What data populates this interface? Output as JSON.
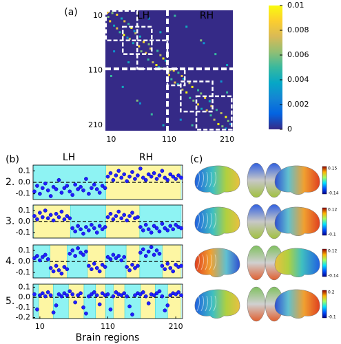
{
  "panels": [
    "(a)",
    "(b)",
    "(c)"
  ],
  "chart_data": [
    {
      "type": "heatmap",
      "annotations": [
        "LH",
        "RH"
      ],
      "xlim": [
        0,
        220
      ],
      "ylim": [
        0,
        220
      ],
      "xticks": [
        10,
        110,
        210
      ],
      "yticks": [
        10,
        110,
        210
      ],
      "hemisphere_split": 107,
      "modules": [
        [
          1,
          55
        ],
        [
          30,
          80
        ],
        [
          55,
          107
        ],
        [
          107,
          137
        ],
        [
          130,
          185
        ],
        [
          157,
          218
        ]
      ],
      "colorscale": [
        "#352a87",
        "#0363e1",
        "#1485d4",
        "#06a7c6",
        "#38b99e",
        "#92bf73",
        "#d9ba56",
        "#fcce2e",
        "#f9fb0e"
      ],
      "colorbar": {
        "lim": [
          0,
          0.01
        ],
        "ticks": [
          0,
          0.002,
          0.004,
          0.006,
          0.008,
          0.01
        ]
      },
      "cells": [
        [
          5,
          12,
          0.006
        ],
        [
          8,
          20,
          0.009
        ],
        [
          15,
          28,
          0.004
        ],
        [
          20,
          33,
          0.008
        ],
        [
          25,
          40,
          0.005
        ],
        [
          32,
          45,
          0.01
        ],
        [
          38,
          50,
          0.003
        ],
        [
          42,
          52,
          0.007
        ],
        [
          48,
          60,
          0.004
        ],
        [
          58,
          66,
          0.009
        ],
        [
          62,
          75,
          0.006
        ],
        [
          70,
          78,
          0.008
        ],
        [
          74,
          90,
          0.005
        ],
        [
          82,
          95,
          0.007
        ],
        [
          88,
          100,
          0.01
        ],
        [
          92,
          104,
          0.004
        ],
        [
          97,
          106,
          0.006
        ],
        [
          110,
          118,
          0.009
        ],
        [
          114,
          126,
          0.005
        ],
        [
          120,
          132,
          0.008
        ],
        [
          125,
          135,
          0.004
        ],
        [
          133,
          145,
          0.007
        ],
        [
          140,
          150,
          0.01
        ],
        [
          146,
          160,
          0.005
        ],
        [
          152,
          165,
          0.006
        ],
        [
          160,
          172,
          0.009
        ],
        [
          166,
          180,
          0.004
        ],
        [
          175,
          183,
          0.008
        ],
        [
          182,
          192,
          0.005
        ],
        [
          188,
          200,
          0.007
        ],
        [
          195,
          208,
          0.01
        ],
        [
          202,
          212,
          0.006
        ],
        [
          208,
          216,
          0.003
        ],
        [
          10,
          120,
          0.005
        ],
        [
          30,
          140,
          0.004
        ],
        [
          55,
          165,
          0.006
        ],
        [
          80,
          190,
          0.005
        ],
        [
          100,
          210,
          0.004
        ],
        [
          15,
          75,
          0.003
        ],
        [
          40,
          95,
          0.004
        ],
        [
          130,
          200,
          0.003
        ],
        [
          150,
          210,
          0.005
        ],
        [
          3,
          5,
          0.008
        ],
        [
          109,
          112,
          0.007
        ],
        [
          60,
          170,
          0.003
        ]
      ]
    },
    {
      "type": "scatter",
      "label": "2.",
      "annotations": [
        "LH",
        "RH"
      ],
      "xlim": [
        0,
        220
      ],
      "ylim": [
        -0.15,
        0.15
      ],
      "yticks": [
        0.1,
        {
          "value": 0,
          "label": "0.0"
        },
        -0.1
      ],
      "color": "#1f1fff",
      "regions": [
        {
          "from": 1,
          "to": 107,
          "color": "#8ef3f3"
        },
        {
          "from": 107,
          "to": 218,
          "color": "#fdf6a3"
        }
      ],
      "x": [
        2,
        6,
        10,
        14,
        18,
        22,
        26,
        30,
        34,
        38,
        42,
        46,
        50,
        54,
        58,
        62,
        66,
        70,
        74,
        78,
        82,
        86,
        90,
        94,
        98,
        102,
        106,
        110,
        114,
        118,
        122,
        126,
        130,
        134,
        138,
        142,
        146,
        150,
        154,
        158,
        162,
        166,
        170,
        174,
        178,
        182,
        186,
        190,
        194,
        198,
        202,
        206,
        210,
        214,
        218
      ],
      "values": [
        -0.08,
        -0.03,
        -0.1,
        -0.05,
        -0.01,
        -0.07,
        -0.12,
        -0.04,
        -0.06,
        0.02,
        -0.09,
        -0.05,
        -0.03,
        -0.08,
        -0.11,
        -0.02,
        -0.06,
        -0.04,
        -0.07,
        0.03,
        -0.1,
        -0.05,
        -0.02,
        -0.06,
        -0.09,
        -0.03,
        -0.05,
        0.05,
        0.08,
        0.02,
        0.06,
        0.1,
        0.04,
        0.07,
        0.01,
        0.05,
        0.09,
        0.03,
        0.06,
        0.12,
        0.04,
        0.02,
        0.07,
        0.05,
        0.08,
        0.03,
        0.06,
        0.1,
        0.04,
        0.02,
        0.07,
        0.05,
        0.03,
        0.06,
        0.04
      ]
    },
    {
      "type": "scatter",
      "label": "3.",
      "xlim": [
        0,
        220
      ],
      "ylim": [
        -0.15,
        0.15
      ],
      "yticks": [
        0.1,
        {
          "value": 0,
          "label": "0.0"
        },
        -0.1
      ],
      "color": "#1f1fff",
      "regions": [
        {
          "from": 1,
          "to": 55,
          "color": "#fdf6a3"
        },
        {
          "from": 55,
          "to": 107,
          "color": "#8ef3f3"
        },
        {
          "from": 107,
          "to": 157,
          "color": "#fdf6a3"
        },
        {
          "from": 157,
          "to": 218,
          "color": "#8ef3f3"
        }
      ],
      "x": [
        2,
        6,
        10,
        14,
        18,
        22,
        26,
        30,
        34,
        38,
        42,
        46,
        50,
        54,
        58,
        62,
        66,
        70,
        74,
        78,
        82,
        86,
        90,
        94,
        98,
        102,
        106,
        110,
        114,
        118,
        122,
        126,
        130,
        134,
        138,
        142,
        146,
        150,
        154,
        158,
        162,
        166,
        170,
        174,
        178,
        182,
        186,
        190,
        194,
        198,
        202,
        206,
        210,
        214,
        218
      ],
      "values": [
        0.05,
        0.02,
        0.08,
        0.04,
        0.1,
        0.03,
        0.06,
        0.01,
        0.07,
        0.04,
        0.09,
        0.02,
        0.05,
        0.03,
        -0.06,
        -0.09,
        -0.04,
        -0.07,
        -0.11,
        -0.05,
        -0.08,
        -0.03,
        -0.06,
        -0.1,
        -0.04,
        -0.07,
        -0.05,
        0.04,
        0.07,
        0.02,
        0.05,
        0.09,
        0.03,
        0.06,
        0.01,
        0.05,
        0.08,
        0.03,
        0.04,
        -0.05,
        -0.08,
        -0.03,
        -0.07,
        -0.1,
        -0.04,
        -0.06,
        -0.09,
        -0.02,
        -0.06,
        -0.08,
        -0.04,
        -0.07,
        -0.03,
        -0.05,
        -0.06
      ]
    },
    {
      "type": "scatter",
      "label": "4.",
      "xlim": [
        0,
        220
      ],
      "ylim": [
        -0.15,
        0.15
      ],
      "yticks": [
        0.1,
        {
          "value": 0,
          "label": "0.0"
        },
        -0.1
      ],
      "color": "#1f1fff",
      "regions": [
        {
          "from": 1,
          "to": 25,
          "color": "#8ef3f3"
        },
        {
          "from": 25,
          "to": 50,
          "color": "#fdf6a3"
        },
        {
          "from": 50,
          "to": 80,
          "color": "#8ef3f3"
        },
        {
          "from": 80,
          "to": 107,
          "color": "#fdf6a3"
        },
        {
          "from": 107,
          "to": 137,
          "color": "#8ef3f3"
        },
        {
          "from": 137,
          "to": 157,
          "color": "#fdf6a3"
        },
        {
          "from": 157,
          "to": 190,
          "color": "#8ef3f3"
        },
        {
          "from": 190,
          "to": 218,
          "color": "#fdf6a3"
        }
      ],
      "x": [
        2,
        6,
        10,
        14,
        18,
        22,
        26,
        30,
        34,
        38,
        42,
        46,
        50,
        54,
        58,
        62,
        66,
        70,
        74,
        78,
        82,
        86,
        90,
        94,
        98,
        102,
        106,
        110,
        114,
        118,
        122,
        126,
        130,
        134,
        138,
        142,
        146,
        150,
        154,
        158,
        162,
        166,
        170,
        174,
        178,
        182,
        186,
        190,
        194,
        198,
        202,
        206,
        210,
        214,
        218
      ],
      "values": [
        0.03,
        0.05,
        0.01,
        0.04,
        0.06,
        0.02,
        -0.06,
        -0.09,
        -0.04,
        -0.08,
        -0.11,
        -0.05,
        -0.07,
        0.07,
        0.1,
        0.05,
        0.12,
        0.08,
        0.06,
        0.09,
        -0.04,
        -0.07,
        -0.02,
        -0.06,
        -0.09,
        -0.03,
        -0.05,
        0.04,
        0.02,
        0.06,
        0.03,
        0.05,
        0.01,
        0.04,
        -0.05,
        -0.08,
        -0.03,
        -0.06,
        -0.04,
        0.08,
        0.11,
        0.05,
        0.09,
        0.13,
        0.06,
        0.1,
        0.07,
        -0.04,
        -0.07,
        -0.02,
        -0.06,
        -0.09,
        -0.03,
        -0.05,
        -0.04
      ]
    },
    {
      "type": "scatter",
      "label": "5.",
      "xlim": [
        0,
        220
      ],
      "ylim": [
        -0.21,
        0.13
      ],
      "yticks": [
        0.1,
        {
          "value": 0,
          "label": "0.0"
        },
        -0.1,
        -0.2
      ],
      "xticks": [
        10,
        110,
        210
      ],
      "xlabel": "Brain regions",
      "color": "#1f1fff",
      "regions": [
        {
          "from": 1,
          "to": 8,
          "color": "#8ef3f3"
        },
        {
          "from": 8,
          "to": 30,
          "color": "#fdf6a3"
        },
        {
          "from": 30,
          "to": 52,
          "color": "#8ef3f3"
        },
        {
          "from": 52,
          "to": 75,
          "color": "#fdf6a3"
        },
        {
          "from": 75,
          "to": 92,
          "color": "#8ef3f3"
        },
        {
          "from": 92,
          "to": 107,
          "color": "#fdf6a3"
        },
        {
          "from": 107,
          "to": 118,
          "color": "#8ef3f3"
        },
        {
          "from": 118,
          "to": 135,
          "color": "#fdf6a3"
        },
        {
          "from": 135,
          "to": 158,
          "color": "#8ef3f3"
        },
        {
          "from": 158,
          "to": 180,
          "color": "#fdf6a3"
        },
        {
          "from": 180,
          "to": 198,
          "color": "#8ef3f3"
        },
        {
          "from": 198,
          "to": 218,
          "color": "#fdf6a3"
        }
      ],
      "x": [
        2,
        6,
        10,
        14,
        18,
        22,
        26,
        30,
        34,
        38,
        42,
        46,
        50,
        54,
        58,
        62,
        66,
        70,
        74,
        78,
        82,
        86,
        90,
        94,
        98,
        102,
        106,
        110,
        114,
        118,
        122,
        126,
        130,
        134,
        138,
        142,
        146,
        150,
        154,
        158,
        162,
        166,
        170,
        174,
        178,
        182,
        186,
        190,
        194,
        198,
        202,
        206,
        210,
        214,
        218
      ],
      "values": [
        0.03,
        -0.12,
        0.02,
        0.04,
        0.01,
        0.05,
        0.02,
        -0.15,
        -0.08,
        0.03,
        0.01,
        0.04,
        0.02,
        0.06,
        0.03,
        -0.05,
        0.02,
        0.04,
        -0.1,
        -0.16,
        0.01,
        0.03,
        0.05,
        0.02,
        -0.07,
        0.04,
        0.02,
        0.03,
        -0.12,
        0.01,
        0.05,
        0.03,
        0.02,
        0.04,
        0.01,
        -0.09,
        -0.17,
        0.02,
        0.04,
        0.03,
        0.05,
        0.01,
        -0.06,
        0.03,
        0.02,
        0.04,
        0.06,
        0.01,
        -0.13,
        -0.08,
        0.02,
        0.04,
        0.03,
        0.05,
        0.02
      ]
    },
    {
      "type": "brain-maps",
      "colorbars": [
        {
          "max": 0.15,
          "min": -0.14
        },
        {
          "max": 0.12,
          "min": -0.1
        },
        {
          "max": 0.12,
          "min": -0.14
        },
        {
          "max": 0.2,
          "min": -0.1
        }
      ]
    }
  ]
}
